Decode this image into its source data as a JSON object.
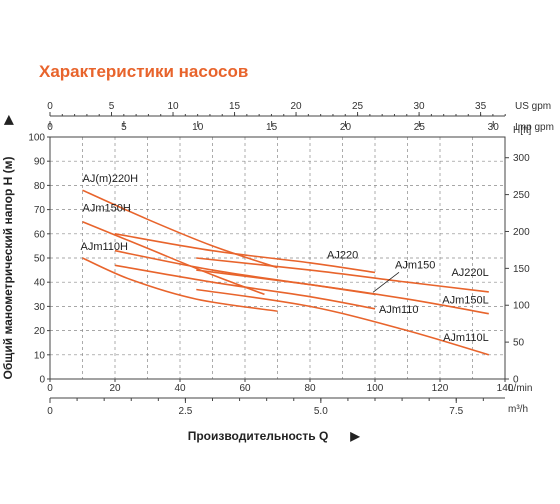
{
  "title": "Характеристики насосов",
  "chart_data": {
    "type": "line",
    "title": "Характеристики насосов",
    "ylabel": "Общий манометрический напор H (м)",
    "xlabel": "Производительность Q",
    "x_unit": "L/min",
    "y_unit": "H[m]",
    "ylim": [
      0,
      100
    ],
    "xlim": [
      0,
      140
    ],
    "grid": true,
    "left_ticks": [
      "0",
      "10",
      "20",
      "30",
      "40",
      "50",
      "60",
      "70",
      "80",
      "90",
      "100"
    ],
    "right_axis": {
      "unit": "H[ft]",
      "ticks": [
        "0",
        "50",
        "100",
        "150",
        "200",
        "250",
        "300"
      ]
    },
    "bottom_axis": {
      "unit": "L/min",
      "ticks": [
        "0",
        "20",
        "40",
        "60",
        "80",
        "100",
        "120",
        "140"
      ]
    },
    "m3h_axis": {
      "unit": "m³/h",
      "ticks": [
        "0",
        "2.5",
        "5.0",
        "7.5"
      ]
    },
    "us_gpm_axis": {
      "unit": "US gpm",
      "ticks": [
        "0",
        "5",
        "10",
        "15",
        "20",
        "25",
        "30",
        "35"
      ]
    },
    "imp_gpm_axis": {
      "unit": "Imp gpm",
      "ticks": [
        "0",
        "5",
        "10",
        "15",
        "20",
        "25",
        "30"
      ]
    },
    "series": [
      {
        "name": "AJ(m)220H",
        "x": [
          10,
          30,
          50,
          70
        ],
        "y": [
          78,
          66,
          55,
          46
        ]
      },
      {
        "name": "AJm150H",
        "x": [
          10,
          30,
          50,
          66
        ],
        "y": [
          65,
          54,
          43,
          35
        ]
      },
      {
        "name": "AJm110H",
        "x": [
          10,
          25,
          45,
          70
        ],
        "y": [
          50,
          41,
          33,
          28
        ]
      },
      {
        "name": "AJ220",
        "x": [
          20,
          50,
          80,
          100
        ],
        "y": [
          60,
          53,
          48,
          44
        ]
      },
      {
        "name": "AJm150",
        "x": [
          20,
          50,
          80,
          100
        ],
        "y": [
          53,
          45,
          39,
          35
        ]
      },
      {
        "name": "AJm110",
        "x": [
          20,
          50,
          80,
          100
        ],
        "y": [
          47,
          40,
          34,
          29
        ]
      },
      {
        "name": "AJ220L",
        "x": [
          45,
          80,
          110,
          135
        ],
        "y": [
          50,
          45,
          40,
          36
        ]
      },
      {
        "name": "AJm150L",
        "x": [
          45,
          80,
          110,
          135
        ],
        "y": [
          45,
          39,
          33,
          27
        ]
      },
      {
        "name": "AJm110L",
        "x": [
          45,
          80,
          110,
          135
        ],
        "y": [
          37,
          30,
          20,
          10
        ]
      }
    ]
  }
}
